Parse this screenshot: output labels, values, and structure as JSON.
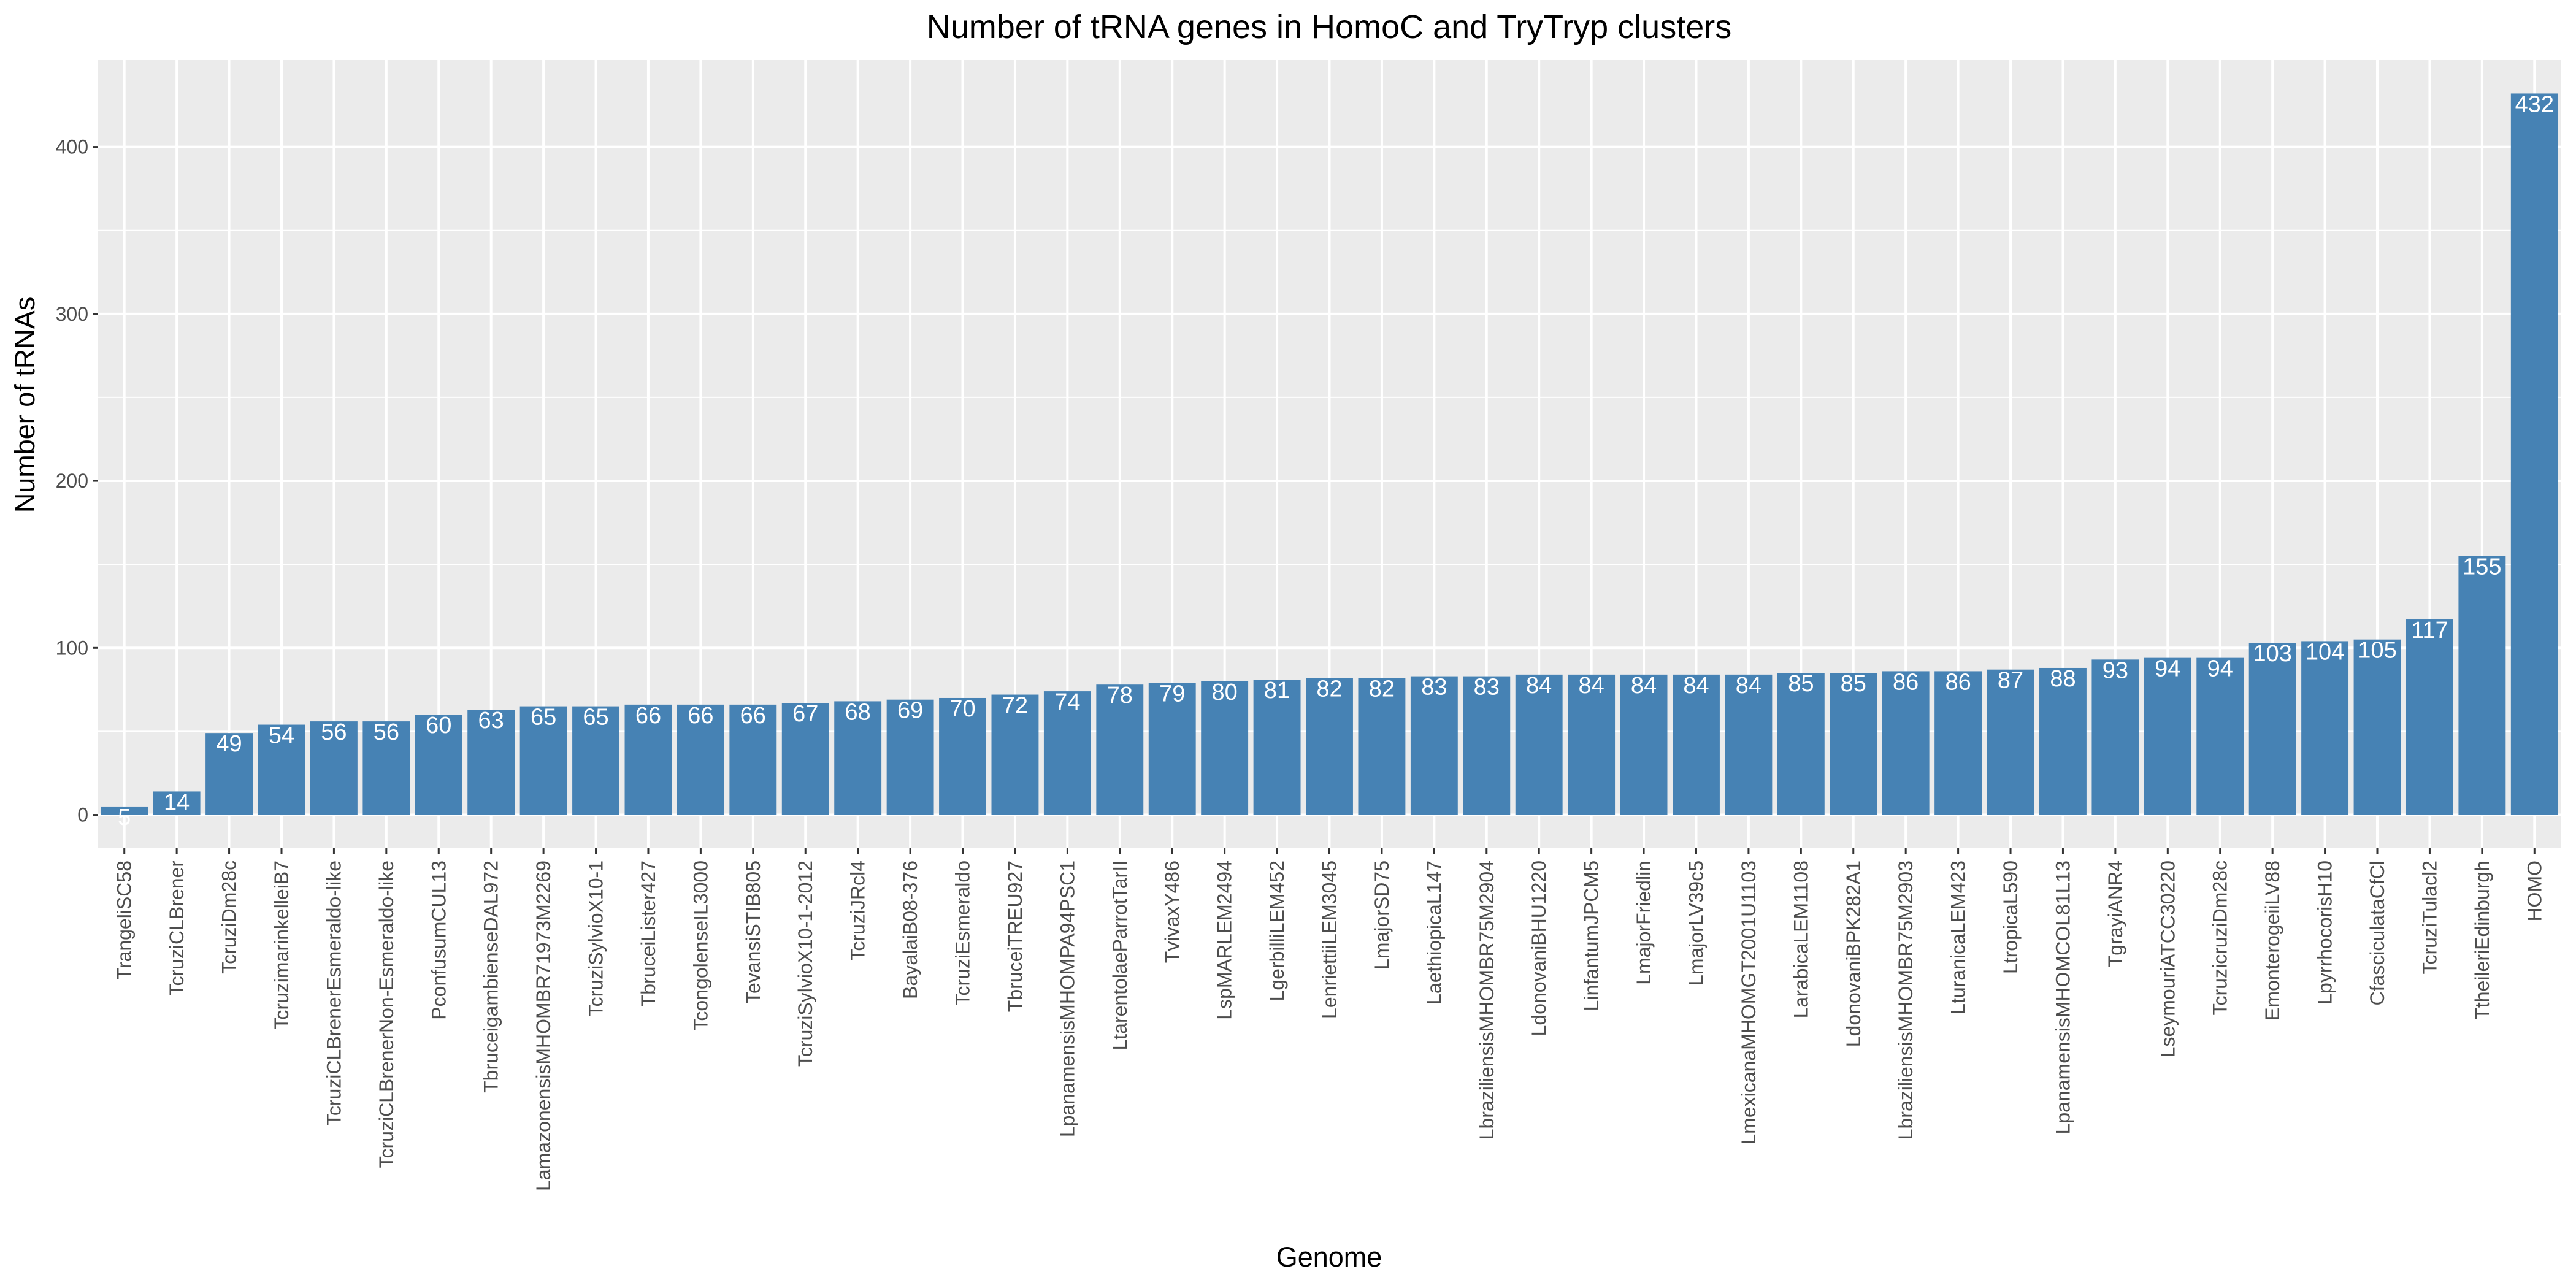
{
  "chart_data": {
    "type": "bar",
    "title": "Number of tRNA genes in HomoC and TryTryp clusters",
    "xlabel": "Genome",
    "ylabel": "Number of tRNAs",
    "ylim": [
      -20,
      452
    ],
    "yticks": [
      0,
      100,
      200,
      300,
      400
    ],
    "grid": true,
    "colors": {
      "bar": "#4682b4",
      "panel": "#ebebeb",
      "grid": "#ffffff",
      "bar_label": "#ffffff"
    },
    "categories": [
      "TrangeliSC58",
      "TcruziCLBrener",
      "TcruziDm28c",
      "TcruzimarinkelleiB7",
      "TcruziCLBrenerEsmeraldo-like",
      "TcruziCLBrenerNon-Esmeraldo-like",
      "PconfusumCUL13",
      "TbruceigambienseDAL972",
      "LamazonensisMHOMBR71973M2269",
      "TcruziSylvioX10-1",
      "TbruceiLister427",
      "TcongolenseIL3000",
      "TevansiSTIB805",
      "TcruziSylvioX10-1-2012",
      "TcruziJRcl4",
      "BayalaiB08-376",
      "TcruziEsmeraldo",
      "TbruceiTREU927",
      "LpanamensisMHOMPA94PSC1",
      "LtarentolaeParrotTarII",
      "TvivaxY486",
      "LspMARLEM2494",
      "LgerbilliLEM452",
      "LenriettiiLEM3045",
      "LmajorSD75",
      "LaethiopicaL147",
      "LbraziliensisMHOMBR75M2904",
      "LdonovaniBHU1220",
      "LinfantumJPCM5",
      "LmajorFriedlin",
      "LmajorLV39c5",
      "LmexicanaMHOMGT2001U1103",
      "LarabicaLEM1108",
      "LdonovaniBPK282A1",
      "LbraziliensisMHOMBR75M2903",
      "LturanicaLEM423",
      "LtropicaL590",
      "LpanamensisMHOMCOL81L13",
      "TgrayiANR4",
      "LseymouriATCC30220",
      "TcruzicruziDm28c",
      "EmonterogeiiLV88",
      "LpyrrhocorisH10",
      "CfasciculataCfCl",
      "TcruziTulacl2",
      "TtheileriEdinburgh",
      "HOMO"
    ],
    "values": [
      5,
      14,
      49,
      54,
      56,
      56,
      60,
      63,
      65,
      65,
      66,
      66,
      66,
      67,
      68,
      69,
      70,
      72,
      74,
      78,
      79,
      80,
      81,
      82,
      82,
      83,
      83,
      84,
      84,
      84,
      84,
      84,
      85,
      85,
      86,
      86,
      87,
      88,
      93,
      94,
      94,
      103,
      104,
      105,
      117,
      155,
      432
    ],
    "value_labels": [
      "5",
      "14",
      "49",
      "54",
      "56",
      "56",
      "60",
      "63",
      "65",
      "65",
      "66",
      "66",
      "66",
      "67",
      "68",
      "69",
      "70",
      "72",
      "74",
      "78",
      "79",
      "80",
      "81",
      "82",
      "82",
      "83",
      "83",
      "84",
      "84",
      "84",
      "84",
      "84",
      "85",
      "85",
      "86",
      "86",
      "87",
      "88",
      "93",
      "94",
      "94",
      "103",
      "104",
      "105",
      "117",
      "155",
      "432"
    ],
    "ytick_labels": [
      "0",
      "100",
      "200",
      "300",
      "400"
    ]
  }
}
